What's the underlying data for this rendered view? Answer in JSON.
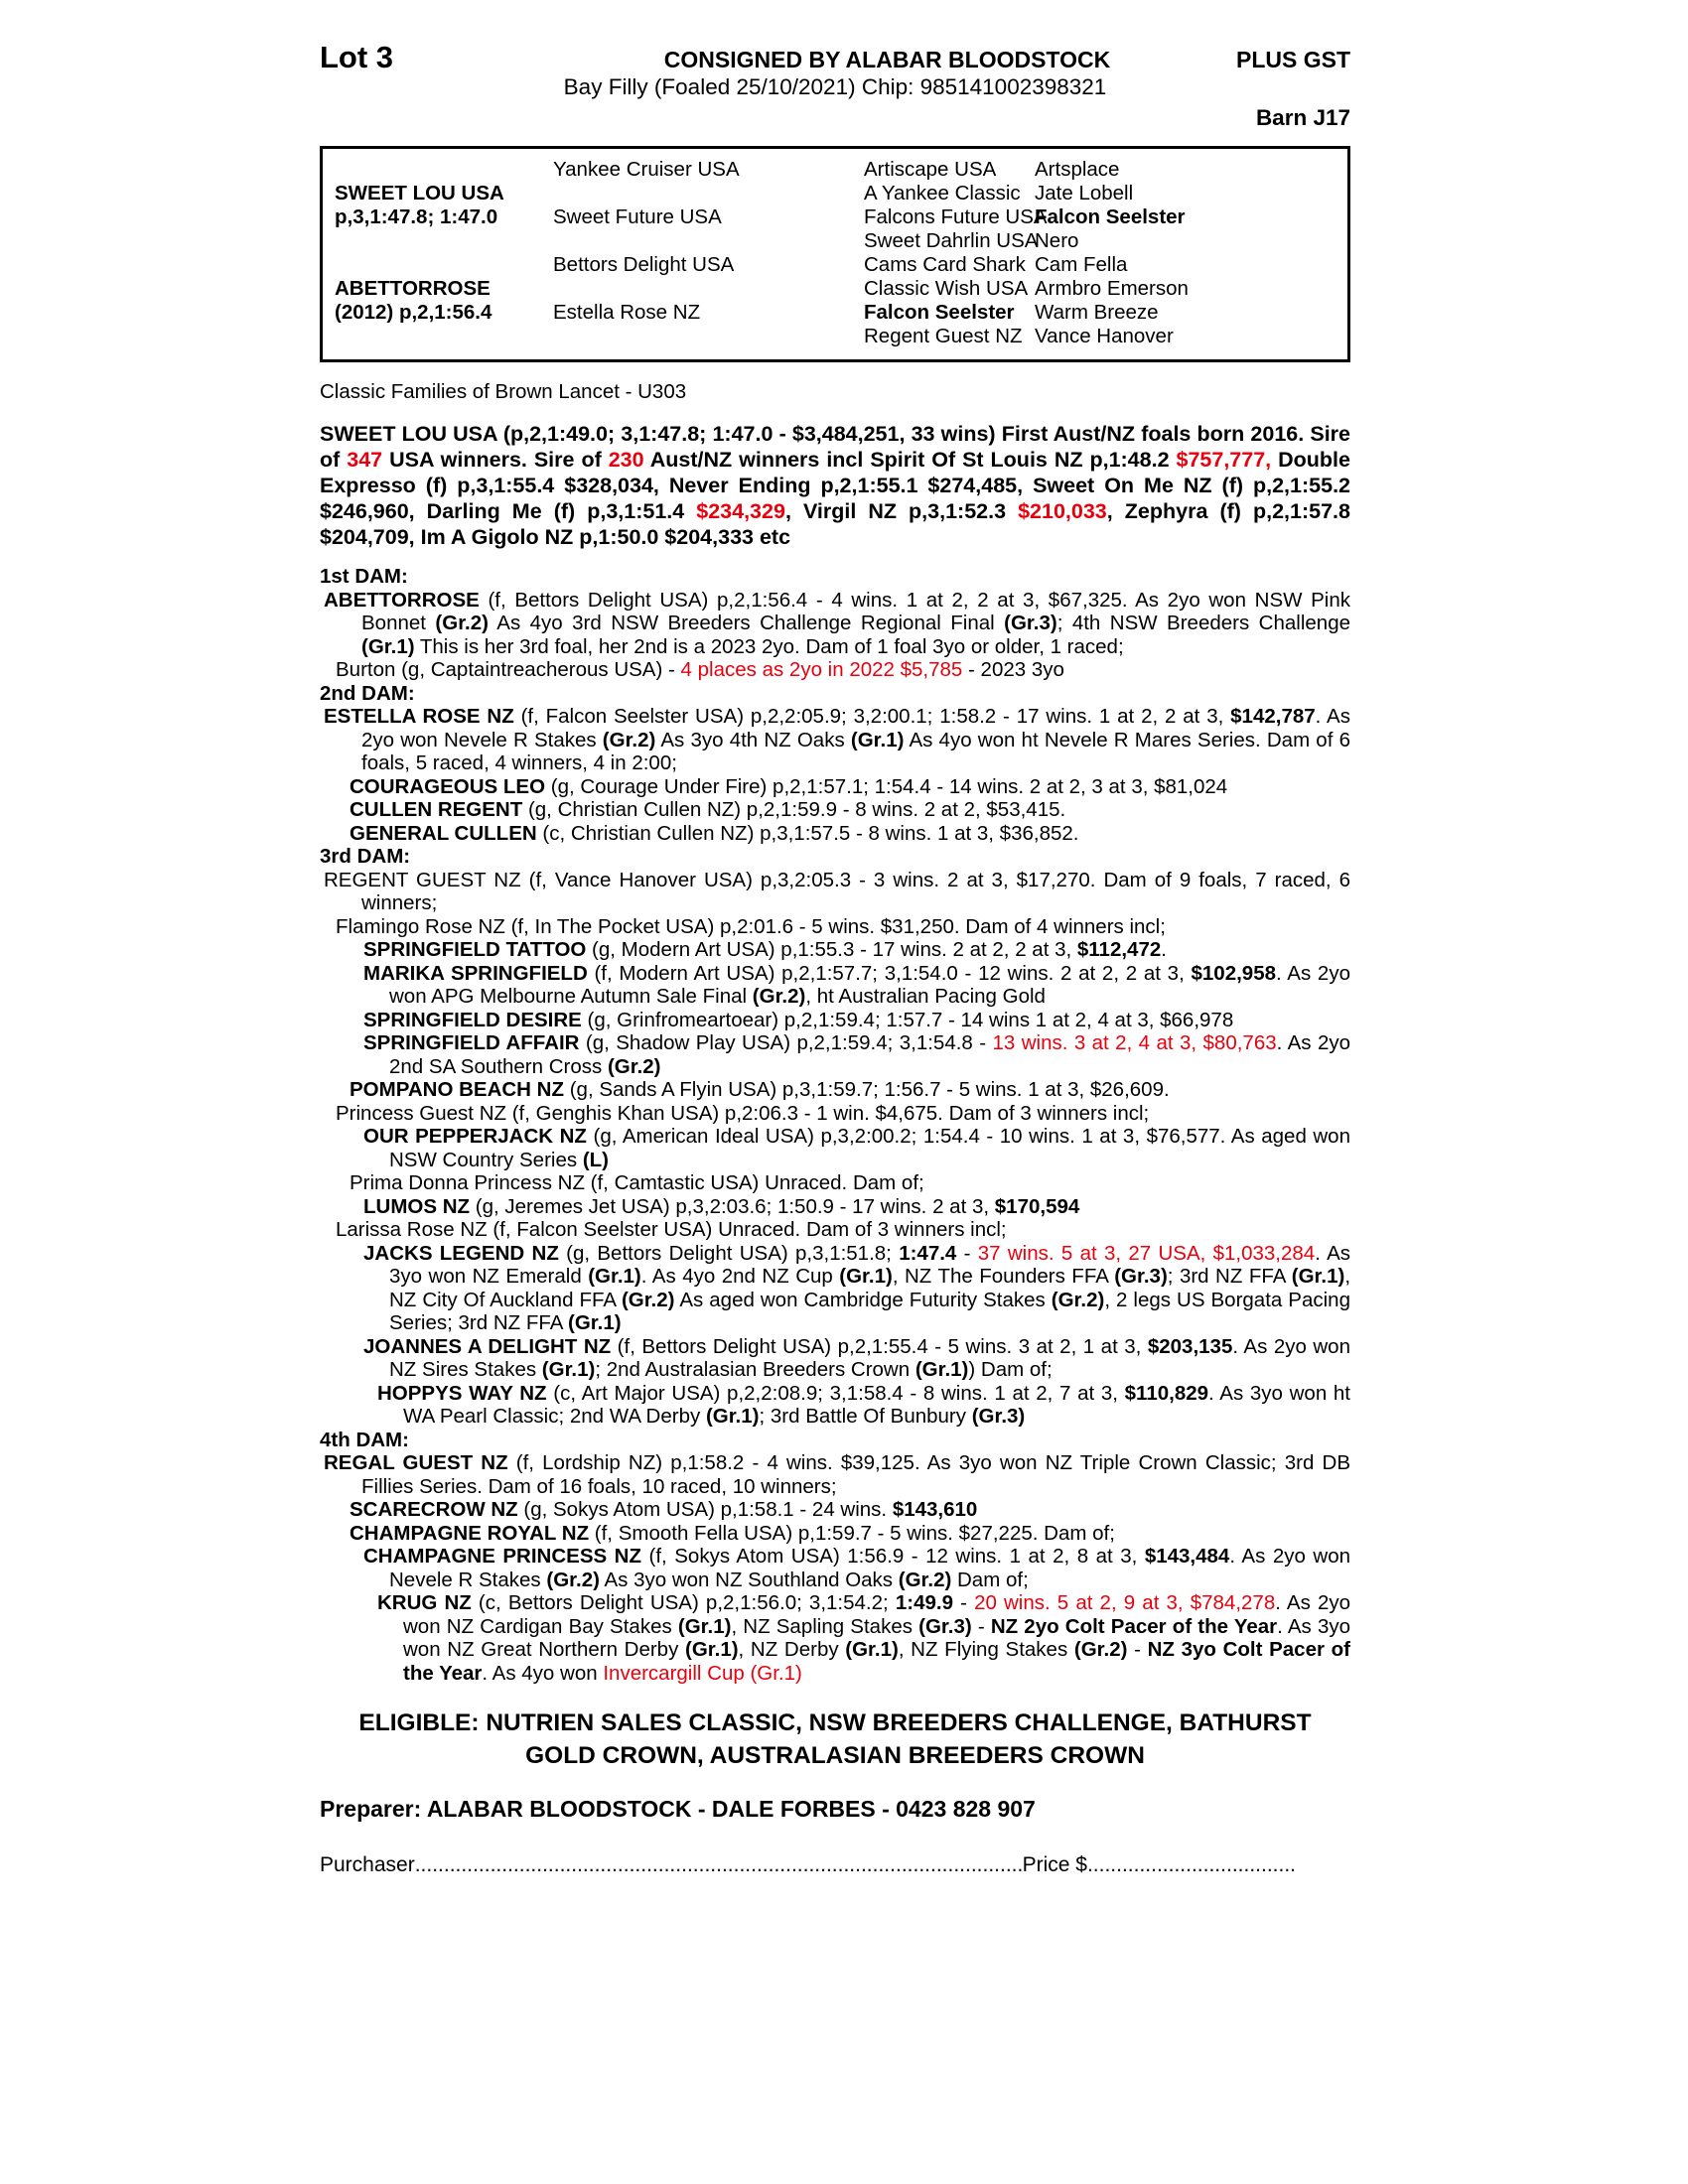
{
  "colors": {
    "red": "#e8000d",
    "text": "#000000",
    "paper": "#ffffff"
  },
  "header": {
    "lot": "Lot 3",
    "consigned_by": "CONSIGNED BY ALABAR BLOODSTOCK",
    "plus_gst": "PLUS GST",
    "description": "Bay Filly (Foaled 25/10/2021) Chip: 985141002398321",
    "barn": "Barn J17"
  },
  "pedigree_table": {
    "rows": [
      [
        "",
        "Yankee Cruiser USA",
        "Artiscape USA",
        "Artsplace"
      ],
      [
        {
          "t": "SWEET LOU USA",
          "b": true
        },
        "",
        "A Yankee Classic",
        "Jate Lobell"
      ],
      [
        {
          "t": "p,3,1:47.8; 1:47.0",
          "b": true
        },
        "Sweet Future USA",
        "Falcons Future USA",
        {
          "t": "Falcon Seelster",
          "b": true
        }
      ],
      [
        "",
        "",
        "Sweet Dahrlin USA",
        "Nero"
      ],
      [
        "",
        "Bettors Delight USA",
        "Cams Card Shark",
        "Cam Fella"
      ],
      [
        {
          "t": "ABETTORROSE",
          "b": true
        },
        "",
        "Classic Wish USA",
        "Armbro Emerson"
      ],
      [
        {
          "t": "(2012) p,2,1:56.4",
          "b": true
        },
        "Estella Rose NZ",
        {
          "t": "Falcon Seelster",
          "b": true
        },
        "Warm Breeze"
      ],
      [
        "",
        "",
        "Regent Guest NZ",
        "Vance Hanover"
      ]
    ]
  },
  "family_note": "Classic Families of Brown Lancet - U303",
  "sire_paragraph": {
    "segments": [
      {
        "t": "SWEET LOU USA (p,2,1:49.0; 3,1:47.8; 1:47.0 - $3,484,251, 33 wins) First Aust/NZ foals born 2016. Sire of ",
        "b": true
      },
      {
        "t": "347",
        "b": true,
        "r": true
      },
      {
        "t": " USA winners. Sire of ",
        "b": true
      },
      {
        "t": "230",
        "b": true,
        "r": true
      },
      {
        "t": " Aust/NZ winners incl Spirit Of St Louis NZ p,1:48.2 ",
        "b": true
      },
      {
        "t": "$757,777,",
        "b": true,
        "r": true
      },
      {
        "t": " Double Expresso (f) p,3,1:55.4 $328,034, Never Ending p,2,1:55.1 $274,485, Sweet On Me NZ (f) p,2,1:55.2 $246,960, Darling Me (f) p,3,1:51.4 ",
        "b": true
      },
      {
        "t": "$234,329",
        "b": true,
        "r": true
      },
      {
        "t": ", Virgil NZ p,3,1:52.3 ",
        "b": true
      },
      {
        "t": "$210,033",
        "b": true,
        "r": true
      },
      {
        "t": ", Zephyra (f) p,2,1:57.8 $204,709, Im A Gigolo NZ p,1:50.0 $204,333 etc",
        "b": true
      }
    ]
  },
  "dam_sections": [
    {
      "heading": "1st DAM:",
      "entries": [
        {
          "level": "L1",
          "segments": [
            {
              "t": "ABETTORROSE",
              "b": true
            },
            {
              "t": " (f, Bettors Delight USA) p,2,1:56.4 - 4 wins. 1 at 2, 2 at 3, $67,325. As 2yo won NSW Pink Bonnet "
            },
            {
              "t": "(Gr.2)",
              "b": true
            },
            {
              "t": " As 4yo 3rd NSW Breeders Challenge Regional Final "
            },
            {
              "t": "(Gr.3)",
              "b": true
            },
            {
              "t": "; 4th NSW Breeders Challenge "
            },
            {
              "t": "(Gr.1)",
              "b": true
            },
            {
              "t": " This is her 3rd foal, her 2nd is a 2023 2yo. Dam of 1 foal 3yo or older, 1 raced;"
            }
          ]
        },
        {
          "level": "L2",
          "segments": [
            {
              "t": "Burton (g, Captaintreacherous USA) - "
            },
            {
              "t": "4 places as 2yo in 2022 $5,785",
              "r": true
            },
            {
              "t": " - 2023 3yo"
            }
          ]
        }
      ]
    },
    {
      "heading": "2nd DAM:",
      "entries": [
        {
          "level": "L1",
          "segments": [
            {
              "t": "ESTELLA ROSE NZ",
              "b": true
            },
            {
              "t": " (f, Falcon Seelster USA) p,2,2:05.9; 3,2:00.1; 1:58.2 - 17 wins. 1 at 2, 2 at 3, "
            },
            {
              "t": "$142,787",
              "b": true
            },
            {
              "t": ". As 2yo won Nevele R Stakes "
            },
            {
              "t": "(Gr.2)",
              "b": true
            },
            {
              "t": " As 3yo 4th NZ Oaks "
            },
            {
              "t": "(Gr.1)",
              "b": true
            },
            {
              "t": " As 4yo won ht Nevele R Mares Series. Dam of 6 foals, 5 raced, 4 winners, 4 in 2:00;"
            }
          ]
        },
        {
          "level": "L3",
          "segments": [
            {
              "t": "COURAGEOUS LEO",
              "b": true
            },
            {
              "t": " (g, Courage Under Fire) p,2,1:57.1; 1:54.4 - 14 wins. 2 at 2, 3 at 3, $81,024"
            }
          ]
        },
        {
          "level": "L3",
          "segments": [
            {
              "t": "CULLEN REGENT",
              "b": true
            },
            {
              "t": " (g, Christian Cullen NZ) p,2,1:59.9 - 8 wins. 2 at 2, $53,415."
            }
          ]
        },
        {
          "level": "L3",
          "segments": [
            {
              "t": "GENERAL CULLEN",
              "b": true
            },
            {
              "t": " (c, Christian Cullen NZ) p,3,1:57.5 - 8 wins. 1 at 3, $36,852."
            }
          ]
        }
      ]
    },
    {
      "heading": "3rd DAM:",
      "entries": [
        {
          "level": "L1",
          "segments": [
            {
              "t": "REGENT GUEST NZ (f, Vance Hanover USA) p,3,2:05.3 - 3 wins. 2 at 3, $17,270. Dam of 9 foals, 7 raced, 6 winners;"
            }
          ]
        },
        {
          "level": "L2",
          "segments": [
            {
              "t": "Flamingo Rose NZ (f, In The Pocket USA) p,2:01.6 - 5 wins. $31,250. Dam of 4 winners incl;"
            }
          ]
        },
        {
          "level": "L4",
          "segments": [
            {
              "t": "SPRINGFIELD TATTOO",
              "b": true
            },
            {
              "t": " (g, Modern Art USA) p,1:55.3 - 17 wins. 2 at 2, 2 at 3, "
            },
            {
              "t": "$112,472",
              "b": true
            },
            {
              "t": "."
            }
          ]
        },
        {
          "level": "L4",
          "segments": [
            {
              "t": "MARIKA SPRINGFIELD",
              "b": true
            },
            {
              "t": " (f, Modern Art USA) p,2,1:57.7; 3,1:54.0 - 12 wins. 2 at 2, 2 at 3, "
            },
            {
              "t": "$102,958",
              "b": true
            },
            {
              "t": ". As 2yo won APG Melbourne Autumn Sale Final "
            },
            {
              "t": "(Gr.2)",
              "b": true
            },
            {
              "t": ", ht Australian Pacing Gold"
            }
          ]
        },
        {
          "level": "L4",
          "segments": [
            {
              "t": "SPRINGFIELD DESIRE",
              "b": true
            },
            {
              "t": " (g, Grinfromeartoear) p,2,1:59.4; 1:57.7 - 14 wins 1 at 2, 4 at 3, $66,978"
            }
          ]
        },
        {
          "level": "L4",
          "segments": [
            {
              "t": "SPRINGFIELD AFFAIR",
              "b": true
            },
            {
              "t": " (g, Shadow Play USA) p,2,1:59.4; 3,1:54.8 - "
            },
            {
              "t": "13 wins. 3 at 2, 4 at 3, $80,763",
              "r": true
            },
            {
              "t": ". As 2yo 2nd SA Southern Cross "
            },
            {
              "t": "(Gr.2)",
              "b": true
            }
          ]
        },
        {
          "level": "L3",
          "segments": [
            {
              "t": "POMPANO BEACH NZ",
              "b": true
            },
            {
              "t": " (g, Sands A Flyin USA) p,3,1:59.7; 1:56.7 - 5 wins. 1 at 3, $26,609."
            }
          ]
        },
        {
          "level": "L2",
          "segments": [
            {
              "t": "Princess Guest NZ (f, Genghis Khan USA) p,2:06.3 - 1 win. $4,675. Dam of 3 winners incl;"
            }
          ]
        },
        {
          "level": "L4",
          "segments": [
            {
              "t": "OUR PEPPERJACK NZ",
              "b": true
            },
            {
              "t": " (g, American Ideal USA) p,3,2:00.2; 1:54.4 - 10 wins. 1 at 3, $76,577. As aged won NSW Country Series "
            },
            {
              "t": "(L)",
              "b": true
            }
          ]
        },
        {
          "level": "L3",
          "segments": [
            {
              "t": "Prima Donna Princess NZ (f, Camtastic USA) Unraced. Dam of;"
            }
          ]
        },
        {
          "level": "L4",
          "segments": [
            {
              "t": "LUMOS NZ",
              "b": true
            },
            {
              "t": " (g, Jeremes Jet USA) p,3,2:03.6; 1:50.9 - 17 wins. 2 at 3, "
            },
            {
              "t": "$170,594",
              "b": true
            }
          ]
        },
        {
          "level": "L2",
          "segments": [
            {
              "t": "Larissa Rose NZ (f, Falcon Seelster USA) Unraced. Dam of 3 winners incl;"
            }
          ]
        },
        {
          "level": "L4",
          "segments": [
            {
              "t": "JACKS LEGEND NZ",
              "b": true
            },
            {
              "t": " (g, Bettors Delight USA) p,3,1:51.8; "
            },
            {
              "t": "1:47.4",
              "b": true
            },
            {
              "t": " - "
            },
            {
              "t": "37 wins. 5 at 3, 27 USA, $1,033,284",
              "r": true
            },
            {
              "t": ". As 3yo won NZ Emerald "
            },
            {
              "t": "(Gr.1)",
              "b": true
            },
            {
              "t": ". As 4yo 2nd NZ Cup "
            },
            {
              "t": "(Gr.1)",
              "b": true
            },
            {
              "t": ", NZ The Founders FFA "
            },
            {
              "t": "(Gr.3)",
              "b": true
            },
            {
              "t": "; 3rd NZ FFA "
            },
            {
              "t": "(Gr.1)",
              "b": true
            },
            {
              "t": ", NZ City Of Auckland FFA "
            },
            {
              "t": "(Gr.2)",
              "b": true
            },
            {
              "t": " As aged won Cambridge Futurity Stakes "
            },
            {
              "t": "(Gr.2)",
              "b": true
            },
            {
              "t": ", 2 legs US Borgata Pacing Series; 3rd NZ FFA "
            },
            {
              "t": "(Gr.1)",
              "b": true
            }
          ]
        },
        {
          "level": "L4",
          "segments": [
            {
              "t": "JOANNES A DELIGHT NZ",
              "b": true
            },
            {
              "t": " (f, Bettors Delight USA) p,2,1:55.4 - 5 wins. 3 at 2, 1 at 3, "
            },
            {
              "t": "$203,135",
              "b": true
            },
            {
              "t": ". As 2yo won NZ Sires Stakes "
            },
            {
              "t": "(Gr.1)",
              "b": true
            },
            {
              "t": "; 2nd Australasian Breeders Crown "
            },
            {
              "t": "(Gr.1)",
              "b": true
            },
            {
              "t": ")  Dam of;"
            }
          ]
        },
        {
          "level": "L5",
          "segments": [
            {
              "t": "HOPPYS WAY NZ",
              "b": true
            },
            {
              "t": " (c, Art Major USA) p,2,2:08.9; 3,1:58.4 - 8 wins. 1 at 2, 7 at 3, "
            },
            {
              "t": "$110,829",
              "b": true
            },
            {
              "t": ". As 3yo won ht WA Pearl Classic; 2nd WA Derby "
            },
            {
              "t": "(Gr.1)",
              "b": true
            },
            {
              "t": "; 3rd Battle Of Bunbury "
            },
            {
              "t": "(Gr.3)",
              "b": true
            }
          ]
        }
      ]
    },
    {
      "heading": "4th DAM:",
      "entries": [
        {
          "level": "L1",
          "segments": [
            {
              "t": "REGAL GUEST NZ",
              "b": true
            },
            {
              "t": " (f, Lordship NZ) p,1:58.2 - 4 wins. $39,125. As 3yo won NZ Triple Crown Classic; 3rd DB Fillies Series. Dam of 16 foals, 10 raced, 10 winners;"
            }
          ]
        },
        {
          "level": "L3",
          "segments": [
            {
              "t": "SCARECROW NZ",
              "b": true
            },
            {
              "t": " (g, Sokys Atom USA) p,1:58.1 - 24 wins. "
            },
            {
              "t": "$143,610",
              "b": true
            }
          ]
        },
        {
          "level": "L3",
          "segments": [
            {
              "t": "CHAMPAGNE ROYAL NZ",
              "b": true
            },
            {
              "t": " (f, Smooth Fella USA) p,1:59.7 - 5 wins. $27,225. Dam of;"
            }
          ]
        },
        {
          "level": "L4",
          "segments": [
            {
              "t": "CHAMPAGNE PRINCESS NZ",
              "b": true
            },
            {
              "t": " (f, Sokys Atom USA) 1:56.9 - 12 wins. 1 at 2, 8 at 3, "
            },
            {
              "t": "$143,484",
              "b": true
            },
            {
              "t": ". As 2yo won Nevele R Stakes "
            },
            {
              "t": "(Gr.2)",
              "b": true
            },
            {
              "t": " As 3yo won NZ Southland Oaks "
            },
            {
              "t": "(Gr.2)",
              "b": true
            },
            {
              "t": " Dam of;"
            }
          ]
        },
        {
          "level": "L5",
          "segments": [
            {
              "t": "KRUG NZ",
              "b": true
            },
            {
              "t": " (c, Bettors Delight USA) p,2,1:56.0; 3,1:54.2; "
            },
            {
              "t": "1:49.9",
              "b": true
            },
            {
              "t": " - "
            },
            {
              "t": "20 wins. 5 at 2, 9 at 3, $784,278",
              "r": true
            },
            {
              "t": ". As 2yo won NZ Cardigan Bay Stakes "
            },
            {
              "t": "(Gr.1)",
              "b": true
            },
            {
              "t": ", NZ Sapling Stakes "
            },
            {
              "t": "(Gr.3)",
              "b": true
            },
            {
              "t": " - "
            },
            {
              "t": "NZ 2yo Colt Pacer of the Year",
              "b": true
            },
            {
              "t": ". As 3yo won NZ Great Northern Derby "
            },
            {
              "t": "(Gr.1)",
              "b": true
            },
            {
              "t": ", NZ Derby "
            },
            {
              "t": "(Gr.1)",
              "b": true
            },
            {
              "t": ", NZ Flying Stakes "
            },
            {
              "t": "(Gr.2)",
              "b": true
            },
            {
              "t": " - "
            },
            {
              "t": "NZ 3yo Colt Pacer of the Year",
              "b": true
            },
            {
              "t": ". As 4yo won "
            },
            {
              "t": "Invercargill Cup (Gr.1)",
              "r": true
            }
          ]
        }
      ]
    }
  ],
  "eligible": {
    "lines": [
      "ELIGIBLE: NUTRIEN SALES CLASSIC, NSW BREEDERS CHALLENGE, BATHURST",
      "GOLD CROWN, AUSTRALASIAN BREEDERS CROWN"
    ]
  },
  "preparer": "Preparer: ALABAR BLOODSTOCK - DALE FORBES - 0423 828 907",
  "purchaser": {
    "label": "Purchaser",
    "dots": "..........................................................................................................................................",
    "price_label": "Price $",
    "price_dots": "...................................."
  }
}
